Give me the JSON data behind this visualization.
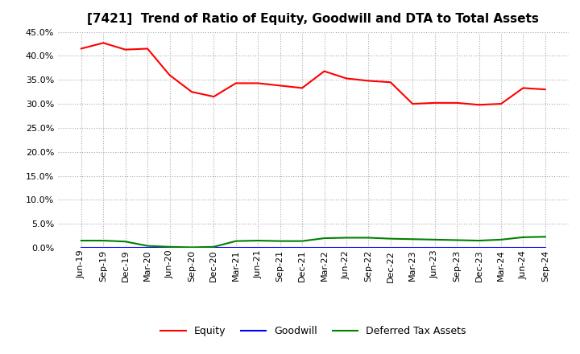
{
  "title": "[7421]  Trend of Ratio of Equity, Goodwill and DTA to Total Assets",
  "labels": [
    "Jun-19",
    "Sep-19",
    "Dec-19",
    "Mar-20",
    "Jun-20",
    "Sep-20",
    "Dec-20",
    "Mar-21",
    "Jun-21",
    "Sep-21",
    "Dec-21",
    "Mar-22",
    "Jun-22",
    "Sep-22",
    "Dec-22",
    "Mar-23",
    "Jun-23",
    "Sep-23",
    "Dec-23",
    "Mar-24",
    "Jun-24",
    "Sep-24"
  ],
  "equity": [
    41.5,
    42.7,
    41.3,
    41.5,
    36.0,
    32.5,
    31.5,
    34.3,
    34.3,
    33.8,
    33.3,
    36.8,
    35.3,
    34.8,
    34.5,
    30.0,
    30.2,
    30.2,
    29.8,
    30.0,
    33.3,
    33.0
  ],
  "goodwill": [
    0.0,
    0.0,
    0.0,
    0.0,
    0.0,
    0.0,
    0.0,
    0.0,
    0.0,
    0.0,
    0.0,
    0.0,
    0.0,
    0.0,
    0.0,
    0.0,
    0.0,
    0.0,
    0.0,
    0.0,
    0.0,
    0.0
  ],
  "dta": [
    1.5,
    1.5,
    1.3,
    0.4,
    0.2,
    0.1,
    0.2,
    1.4,
    1.5,
    1.4,
    1.4,
    2.0,
    2.1,
    2.1,
    1.9,
    1.8,
    1.7,
    1.6,
    1.5,
    1.7,
    2.2,
    2.3
  ],
  "equity_color": "#FF0000",
  "goodwill_color": "#0000FF",
  "dta_color": "#008000",
  "ylim": [
    0,
    45
  ],
  "yticks": [
    0,
    5,
    10,
    15,
    20,
    25,
    30,
    35,
    40,
    45
  ],
  "background_color": "#FFFFFF",
  "grid_color": "#AAAAAA",
  "title_fontsize": 11,
  "tick_fontsize": 8,
  "legend_labels": [
    "Equity",
    "Goodwill",
    "Deferred Tax Assets"
  ]
}
